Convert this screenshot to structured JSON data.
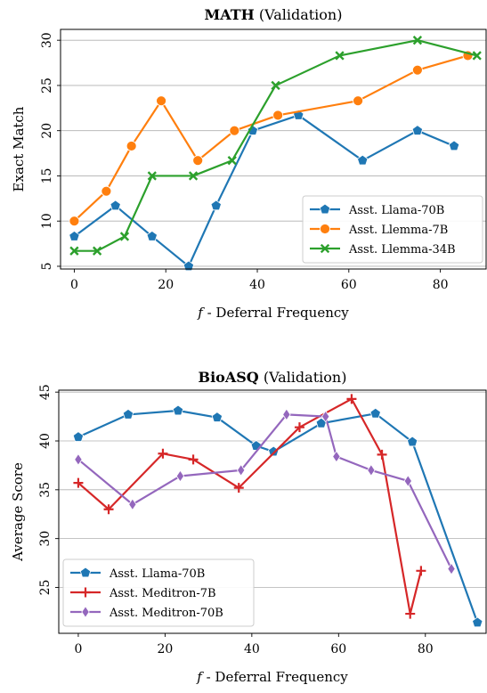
{
  "chart_data": [
    {
      "type": "line",
      "title_bold": "MATH",
      "title_rest": " (Validation)",
      "xlabel_italic": "f",
      "xlabel_rest": " - Deferral Frequency",
      "ylabel": "Exact Match",
      "xlim": [
        -3,
        90
      ],
      "ylim": [
        4.7,
        31.2
      ],
      "xticks": [
        0,
        20,
        40,
        60,
        80
      ],
      "yticks": [
        5,
        10,
        15,
        20,
        25,
        30
      ],
      "grid": "horizontal",
      "legend_position": "lower-right",
      "series": [
        {
          "name": "Asst. Llama-70B",
          "color": "#1f77b4",
          "marker": "pentagon",
          "x": [
            0,
            9,
            17,
            25,
            31,
            39,
            49,
            63,
            75,
            83
          ],
          "y": [
            8.3,
            11.7,
            8.3,
            5.0,
            11.7,
            20.0,
            21.7,
            16.7,
            20.0,
            18.3
          ]
        },
        {
          "name": "Asst. Llemma-7B",
          "color": "#ff7f0e",
          "marker": "circle",
          "x": [
            0,
            7,
            12.5,
            19,
            27,
            35,
            44.5,
            62,
            75,
            86
          ],
          "y": [
            10.0,
            13.3,
            18.3,
            23.3,
            16.7,
            20.0,
            21.7,
            23.3,
            26.7,
            28.3
          ]
        },
        {
          "name": "Asst. Llemma-34B",
          "color": "#2ca02c",
          "marker": "x",
          "x": [
            0,
            5,
            11,
            17,
            26,
            34.5,
            44,
            58,
            75,
            88
          ],
          "y": [
            6.7,
            6.7,
            8.3,
            15.0,
            15.0,
            16.7,
            25.0,
            28.3,
            30.0,
            28.3
          ]
        }
      ]
    },
    {
      "type": "line",
      "title_bold": "BioASQ",
      "title_rest": " (Validation)",
      "xlabel_italic": "f",
      "xlabel_rest": " - Deferral Frequency",
      "ylabel": "Average Score",
      "xlim": [
        -4.5,
        94
      ],
      "ylim": [
        20.3,
        45.2
      ],
      "xticks": [
        0,
        20,
        40,
        60,
        80
      ],
      "yticks": [
        25,
        30,
        35,
        40,
        45
      ],
      "grid": "horizontal",
      "legend_position": "lower-left",
      "series": [
        {
          "name": "Asst. Llama-70B",
          "color": "#1f77b4",
          "marker": "pentagon",
          "x": [
            0,
            11.5,
            23,
            32,
            41,
            45,
            56,
            68.5,
            77,
            92
          ],
          "y": [
            40.4,
            42.7,
            43.1,
            42.4,
            39.5,
            38.9,
            41.8,
            42.8,
            39.9,
            21.4
          ]
        },
        {
          "name": "Asst. Meditron-7B",
          "color": "#d62728",
          "marker": "plus",
          "x": [
            0,
            7,
            19.5,
            26.5,
            37,
            51,
            63,
            70,
            76.5,
            79
          ],
          "y": [
            35.7,
            33.0,
            38.7,
            38.1,
            35.2,
            41.4,
            44.3,
            38.6,
            22.3,
            26.7
          ]
        },
        {
          "name": "Asst. Meditron-70B",
          "color": "#9467bd",
          "marker": "diamond",
          "x": [
            0,
            12.5,
            23.5,
            37.5,
            48,
            57,
            59.5,
            67.5,
            76,
            86
          ],
          "y": [
            38.1,
            33.5,
            36.4,
            37.0,
            42.7,
            42.5,
            38.4,
            37.0,
            35.9,
            26.9
          ]
        }
      ]
    }
  ]
}
